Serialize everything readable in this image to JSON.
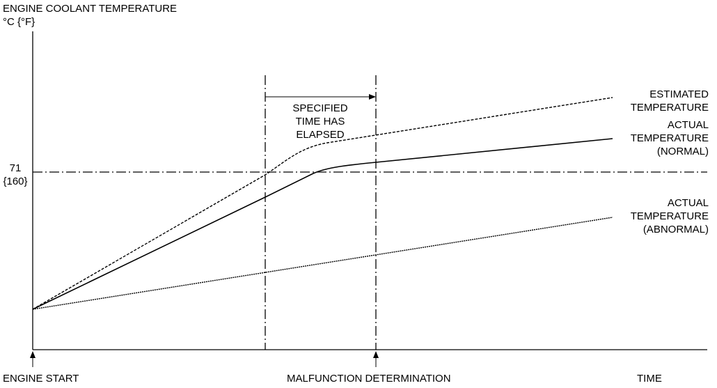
{
  "ylabel": {
    "line1": "ENGINE COOLANT TEMPERATURE",
    "line2": "°C {°F}"
  },
  "threshold": {
    "line1": "71",
    "line2": "{160}"
  },
  "interval_label": {
    "line1": "SPECIFIED",
    "line2": "TIME HAS",
    "line3": "ELAPSED"
  },
  "curves": {
    "estimated": {
      "line1": "ESTIMATED",
      "line2": "TEMPERATURE"
    },
    "normal": {
      "line1": "ACTUAL",
      "line2": "TEMPERATURE",
      "line3": "(NORMAL)"
    },
    "abnormal": {
      "line1": "ACTUAL",
      "line2": "TEMPERATURE",
      "line3": "(ABNORMAL)"
    }
  },
  "xaxis": {
    "start": "ENGINE START",
    "determination": "MALFUNCTION DETERMINATION",
    "time": "TIME"
  }
}
